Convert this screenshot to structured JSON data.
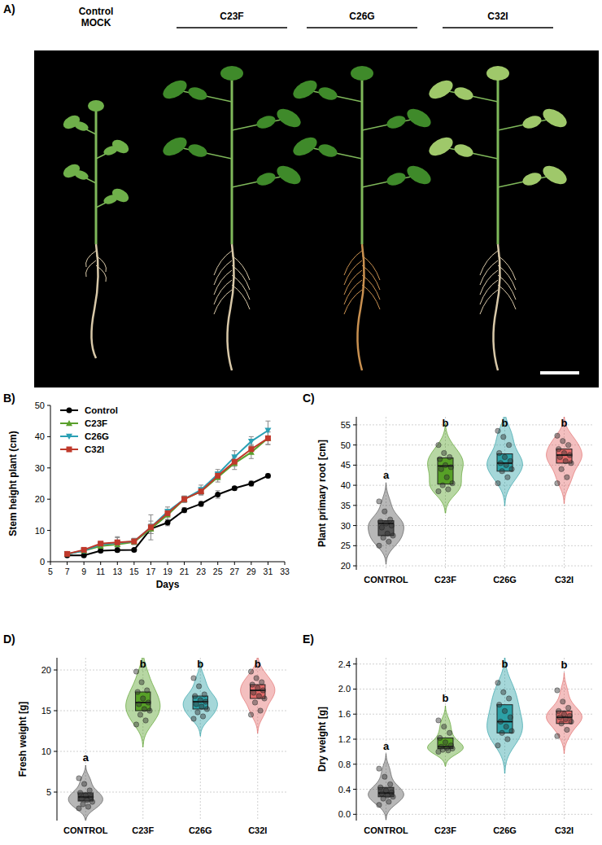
{
  "chart_data": [
    {
      "type": "image",
      "panel_label": "A)",
      "labels": [
        "Control MOCK",
        "C23F",
        "C26G",
        "C32I"
      ]
    },
    {
      "type": "line",
      "panel_label": "B)",
      "x_label": "Days",
      "y_label": "Stem height plant (cm)",
      "x": [
        7,
        9,
        11,
        13,
        15,
        17,
        19,
        21,
        23,
        25,
        27,
        29,
        31
      ],
      "xlim": [
        5,
        33
      ],
      "xticks": [
        5,
        7,
        9,
        11,
        13,
        15,
        17,
        19,
        21,
        23,
        25,
        27,
        29,
        31,
        33
      ],
      "ylim": [
        0,
        50
      ],
      "yticks": [
        0,
        10,
        20,
        30,
        40,
        50
      ],
      "legend": "top-left",
      "grid": false,
      "series": [
        {
          "name": "Control",
          "color": "#000000",
          "marker": "circle",
          "values": [
            2,
            2,
            3.5,
            3.7,
            3.8,
            10.5,
            12.5,
            16.5,
            18.5,
            21.5,
            23.5,
            25,
            27.5
          ],
          "errors": [
            0.2,
            0.3,
            0.4,
            0.5,
            0.5,
            1.5,
            1,
            0.8,
            0.8,
            1.2,
            0.6,
            0.8,
            0.6
          ]
        },
        {
          "name": "C23F",
          "color": "#5aa02c",
          "marker": "triangle",
          "values": [
            2.5,
            3.5,
            5,
            5.5,
            6.3,
            10.5,
            15,
            20,
            22.5,
            27,
            31.5,
            35,
            39.5
          ],
          "errors": [
            0.3,
            0.5,
            0.8,
            1,
            0.8,
            1.5,
            1.5,
            1,
            1.2,
            1.5,
            2,
            2,
            2
          ]
        },
        {
          "name": "C26G",
          "color": "#2aa0b4",
          "marker": "triangle-down",
          "values": [
            2.5,
            3.5,
            5.5,
            6,
            6.5,
            11,
            16,
            20,
            23,
            28,
            33.5,
            38.5,
            42
          ],
          "errors": [
            0.3,
            0.5,
            0.8,
            2,
            1,
            4,
            1.5,
            1,
            1.5,
            1.5,
            2,
            1.5,
            3
          ]
        },
        {
          "name": "C32I",
          "color": "#c0392b",
          "marker": "square",
          "values": [
            2.5,
            3.8,
            5.8,
            6.2,
            6.5,
            11,
            15.5,
            20,
            22.5,
            27.5,
            32,
            36,
            39.5
          ],
          "errors": [
            0.3,
            0.4,
            0.6,
            1.5,
            0.8,
            2,
            1.2,
            1,
            1,
            1.2,
            1.5,
            1.5,
            2
          ]
        }
      ]
    },
    {
      "type": "box",
      "panel_label": "C)",
      "y_label": "Plant primary root [cm]",
      "categories": [
        "CONTROL",
        "C23F",
        "C26G",
        "C32I"
      ],
      "colors": [
        "#4a4a4a",
        "#4c9a1a",
        "#1f9aa0",
        "#e0605f"
      ],
      "letters": [
        "a",
        "b",
        "b",
        "b"
      ],
      "ylim": [
        19,
        57
      ],
      "yticks": [
        20,
        25,
        30,
        35,
        40,
        45,
        50,
        55
      ],
      "grid": true,
      "boxes": [
        {
          "q1": 27.5,
          "median": 30.5,
          "q3": 31.2
        },
        {
          "q1": 40.3,
          "median": 44.8,
          "q3": 46.8
        },
        {
          "q1": 43.5,
          "median": 45.5,
          "q3": 47.8
        },
        {
          "q1": 45.5,
          "median": 47.5,
          "q3": 49
        }
      ],
      "points": [
        [
          36,
          33.5,
          31.5,
          31,
          30.5,
          30,
          29.5,
          28,
          27.5,
          27,
          26,
          25
        ],
        [
          50,
          48,
          47,
          46.5,
          45,
          44.5,
          44,
          42,
          40.5,
          40,
          39,
          38.5
        ],
        [
          53.5,
          52,
          50,
          48,
          47,
          46,
          45.5,
          45,
          44,
          43.5,
          42,
          40.5
        ],
        [
          52.3,
          51,
          50,
          49,
          48,
          47.5,
          47,
          46,
          45.5,
          44,
          42,
          40.5
        ]
      ]
    },
    {
      "type": "box",
      "panel_label": "D)",
      "y_label": "Fresh weight [g]",
      "categories": [
        "CONTROL",
        "C23F",
        "C26G",
        "C32I"
      ],
      "colors": [
        "#4a4a4a",
        "#4c9a1a",
        "#1f9aa0",
        "#e0605f"
      ],
      "letters": [
        "a",
        "b",
        "b",
        "b"
      ],
      "ylim": [
        1.5,
        21.5
      ],
      "yticks": [
        5,
        10,
        15,
        20
      ],
      "grid": true,
      "boxes": [
        {
          "q1": 3.9,
          "median": 4.4,
          "q3": 4.9
        },
        {
          "q1": 15,
          "median": 16,
          "q3": 17.3
        },
        {
          "q1": 15.2,
          "median": 16.1,
          "q3": 16.8
        },
        {
          "q1": 16.5,
          "median": 17.5,
          "q3": 18.2
        }
      ],
      "points": [
        [
          6.7,
          6,
          5.2,
          4.9,
          4.6,
          4.4,
          4.2,
          4,
          3.8,
          3.5,
          3.2,
          3
        ],
        [
          19.8,
          18.5,
          17.5,
          17.3,
          16.5,
          16,
          15.8,
          15.2,
          15,
          14.5,
          13.8,
          13.3
        ],
        [
          19,
          18,
          17,
          16.8,
          16.3,
          16.1,
          15.8,
          15.5,
          15.2,
          14.8,
          14.3,
          14
        ],
        [
          19.8,
          19,
          18.5,
          18.2,
          17.8,
          17.5,
          17.2,
          16.8,
          16.5,
          16,
          15,
          14.5
        ]
      ]
    },
    {
      "type": "box",
      "panel_label": "E)",
      "y_label": "Dry weight [g]",
      "categories": [
        "CONTROL",
        "C23F",
        "C26G",
        "C32I"
      ],
      "colors": [
        "#4a4a4a",
        "#4c9a1a",
        "#1f9aa0",
        "#e0605f"
      ],
      "letters": [
        "a",
        "b",
        "b",
        "b"
      ],
      "ylim": [
        -0.1,
        2.5
      ],
      "yticks": [
        {
          "value": 0,
          "label": "0.0"
        },
        0.4,
        0.8,
        1.2,
        1.6,
        {
          "value": 2,
          "label": "2.0"
        },
        2.4
      ],
      "grid": true,
      "boxes": [
        {
          "q1": 0.28,
          "median": 0.34,
          "q3": 0.43
        },
        {
          "q1": 1.05,
          "median": 1.08,
          "q3": 1.22
        },
        {
          "q1": 1.3,
          "median": 1.48,
          "q3": 1.75
        },
        {
          "q1": 1.45,
          "median": 1.55,
          "q3": 1.65
        }
      ],
      "points": [
        [
          0.73,
          0.6,
          0.48,
          0.43,
          0.38,
          0.35,
          0.33,
          0.3,
          0.28,
          0.25,
          0.2,
          0.15
        ],
        [
          1.5,
          1.4,
          1.3,
          1.22,
          1.15,
          1.1,
          1.08,
          1.06,
          1.05,
          1.03,
          1.02,
          1
        ],
        [
          2.1,
          1.95,
          1.85,
          1.75,
          1.65,
          1.55,
          1.48,
          1.4,
          1.33,
          1.3,
          1.2,
          1.1
        ],
        [
          1.98,
          1.8,
          1.7,
          1.65,
          1.6,
          1.57,
          1.55,
          1.52,
          1.48,
          1.45,
          1.35,
          1.25
        ]
      ]
    }
  ]
}
